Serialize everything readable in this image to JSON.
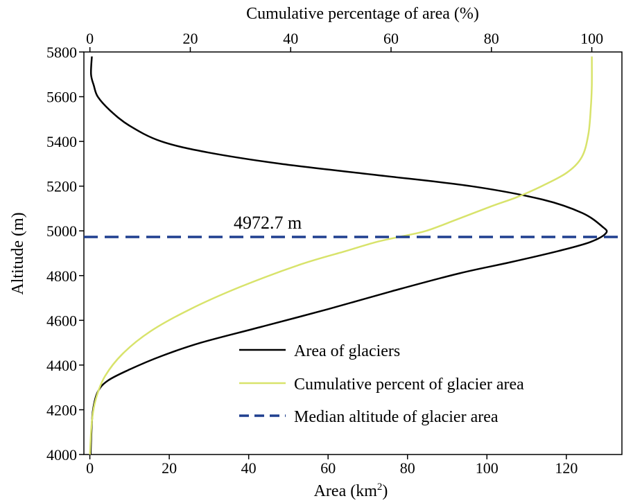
{
  "chart_data": {
    "type": "line",
    "xlabel": "Area (km",
    "xlabel_sup": "2",
    "xlabel_end": ")",
    "x2label": "Cumulative percentage of area (%)",
    "ylabel": "Altitude (m)",
    "xlim": [
      -1.5,
      134
    ],
    "x2lim": [
      -1.2,
      106
    ],
    "ylim": [
      4000,
      5800
    ],
    "xticks": [
      0,
      20,
      40,
      60,
      80,
      100,
      120
    ],
    "x2ticks": [
      0,
      20,
      40,
      60,
      80,
      100
    ],
    "yticks": [
      4000,
      4200,
      4400,
      4600,
      4800,
      5000,
      5200,
      5400,
      5600,
      5800
    ],
    "grid": false,
    "legend_position": "lower-right",
    "annotation": "4972.7 m",
    "series": [
      {
        "name": "Area of glaciers",
        "color": "#000000",
        "axis": "bottom",
        "points": [
          [
            0.2,
            4000
          ],
          [
            0.4,
            4100
          ],
          [
            0.8,
            4200
          ],
          [
            2.0,
            4280
          ],
          [
            4.5,
            4330
          ],
          [
            10,
            4380
          ],
          [
            18,
            4440
          ],
          [
            28,
            4500
          ],
          [
            43,
            4570
          ],
          [
            60,
            4650
          ],
          [
            76,
            4730
          ],
          [
            93,
            4810
          ],
          [
            106,
            4860
          ],
          [
            118,
            4910
          ],
          [
            126,
            4950
          ],
          [
            130,
            4990
          ],
          [
            129,
            5020
          ],
          [
            124,
            5080
          ],
          [
            114,
            5140
          ],
          [
            96,
            5200
          ],
          [
            72,
            5250
          ],
          [
            48,
            5300
          ],
          [
            30,
            5350
          ],
          [
            18,
            5400
          ],
          [
            10,
            5470
          ],
          [
            5,
            5540
          ],
          [
            2,
            5600
          ],
          [
            1,
            5650
          ],
          [
            0.3,
            5700
          ],
          [
            0.5,
            5780
          ]
        ]
      },
      {
        "name": "Cumulative percent of glacier area",
        "color": "#d8e36b",
        "axis": "top",
        "points": [
          [
            0,
            4000
          ],
          [
            0.4,
            4150
          ],
          [
            1.2,
            4250
          ],
          [
            3,
            4350
          ],
          [
            6.5,
            4450
          ],
          [
            12,
            4550
          ],
          [
            20,
            4650
          ],
          [
            30,
            4750
          ],
          [
            42,
            4850
          ],
          [
            51,
            4910
          ],
          [
            57,
            4950
          ],
          [
            62,
            4975
          ],
          [
            67,
            5000
          ],
          [
            73,
            5050
          ],
          [
            80,
            5110
          ],
          [
            85,
            5150
          ],
          [
            90,
            5200
          ],
          [
            95,
            5260
          ],
          [
            98,
            5330
          ],
          [
            99.3,
            5430
          ],
          [
            99.8,
            5550
          ],
          [
            100,
            5650
          ],
          [
            100,
            5780
          ]
        ]
      },
      {
        "name": "Median altitude of glacier area",
        "color": "#1f3f8f",
        "axis": "bottom",
        "y": 4972.7,
        "dashed": true
      }
    ]
  }
}
